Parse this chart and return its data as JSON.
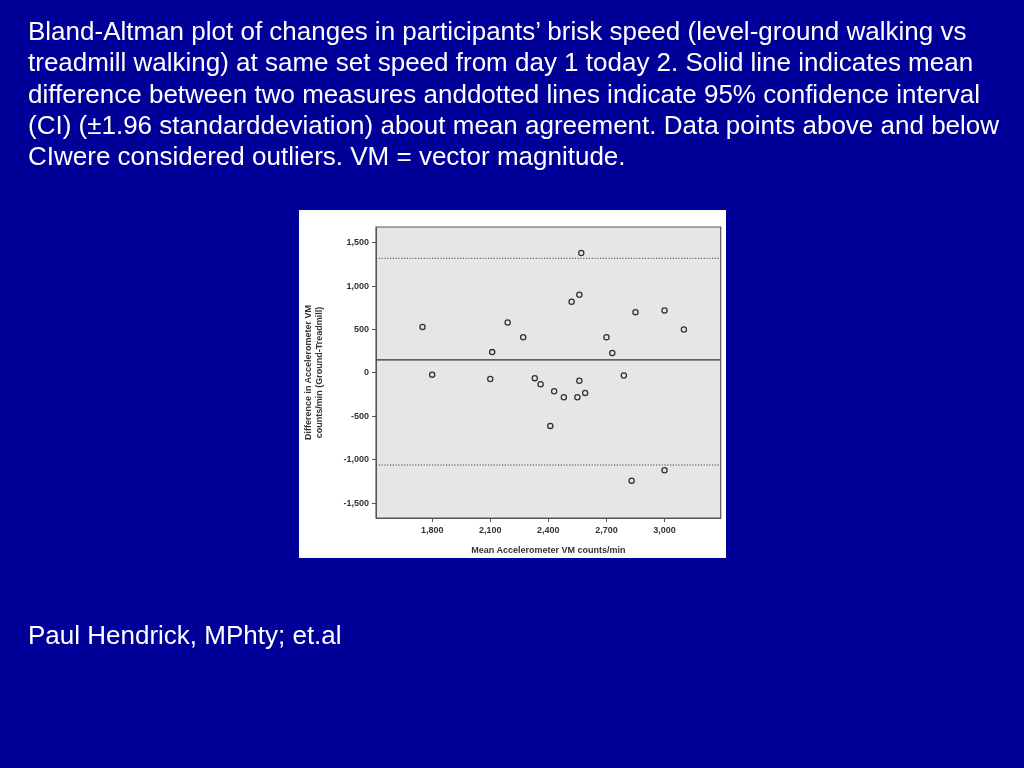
{
  "chart_data": {
    "type": "scatter",
    "title": "Bland-Altman plot of changes in participants’ brisk speed (level-ground walking vs treadmill walking) at same set speed from day 1 today 2. Solid line indicates mean difference between two measures anddotted lines indicate 95% confidence interval (CI) (±1.96 standarddeviation) about mean agreement. Data points above and below CIwere considered outliers. VM = vector magnitude.",
    "xlabel": "Mean Accelerometer VM counts/min",
    "ylabel": "Difference in Accelerometer VM counts/min (Ground-Treadmill)",
    "x": [
      1750,
      1800,
      2100,
      2110,
      2190,
      2270,
      2330,
      2360,
      2430,
      2410,
      2480,
      2520,
      2560,
      2570,
      2550,
      2560,
      2590,
      2700,
      2730,
      2790,
      2850,
      2830,
      3000,
      3000,
      3100
    ],
    "values": [
      530,
      -20,
      -70,
      240,
      580,
      410,
      -60,
      -130,
      -210,
      -610,
      -280,
      820,
      900,
      1380,
      -280,
      -90,
      -230,
      410,
      230,
      -30,
      700,
      -1240,
      720,
      -1120,
      500
    ],
    "color": "#333333",
    "marker": "circle",
    "grid": false,
    "xlim": [
      1510,
      3290
    ],
    "ylim": [
      -1670,
      1680
    ],
    "xticks": [
      {
        "value": 1800,
        "label": "1,800"
      },
      {
        "value": 2100,
        "label": "2,100"
      },
      {
        "value": 2400,
        "label": "2,400"
      },
      {
        "value": 2700,
        "label": "2,700"
      },
      {
        "value": 3000,
        "label": "3,000"
      }
    ],
    "yticks": [
      {
        "value": -1500,
        "label": "-1,500"
      },
      {
        "value": -1000,
        "label": "-1,000"
      },
      {
        "value": -500,
        "label": "-500"
      },
      0,
      {
        "value": 500,
        "label": "500"
      },
      {
        "value": 1000,
        "label": "1,000"
      },
      {
        "value": 1500,
        "label": "1,500"
      }
    ],
    "ref_lines": [
      {
        "axis": "y",
        "value": 150,
        "line_style": "solid",
        "color": "#333333"
      },
      {
        "axis": "y",
        "value": 1320,
        "line_style": "dotted",
        "color": "#444444"
      },
      {
        "axis": "y",
        "value": -1060,
        "line_style": "dotted",
        "color": "#444444"
      }
    ],
    "annotations": [
      "Paul Hendrick, MPhty; et.al"
    ]
  }
}
